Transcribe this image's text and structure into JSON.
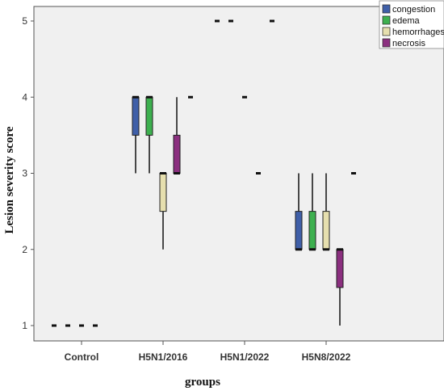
{
  "chart_data": {
    "type": "boxplot",
    "xlabel": "groups",
    "ylabel": "Lesion severity score",
    "ylim": [
      1,
      5
    ],
    "yticks": [
      "1",
      "2",
      "3",
      "4",
      "5"
    ],
    "categories": [
      "Control",
      "H5N1/2016",
      "H5N1/2022",
      "H5N8/2022"
    ],
    "legend_position": "top-right",
    "series": [
      {
        "name": "congestion",
        "color": "#3f5fa8",
        "boxes": [
          {
            "min": 1,
            "q1": 1,
            "median": 1,
            "q3": 1,
            "max": 1,
            "outliers": []
          },
          {
            "min": 3,
            "q1": 3.5,
            "median": 4,
            "q3": 4,
            "max": 4,
            "outliers": []
          },
          {
            "min": 5,
            "q1": 5,
            "median": 5,
            "q3": 5,
            "max": 5,
            "outliers": []
          },
          {
            "min": 2,
            "q1": 2,
            "median": 2,
            "q3": 2.5,
            "max": 3,
            "outliers": []
          }
        ]
      },
      {
        "name": "edema",
        "color": "#3db04f",
        "boxes": [
          {
            "min": 1,
            "q1": 1,
            "median": 1,
            "q3": 1,
            "max": 1,
            "outliers": []
          },
          {
            "min": 3,
            "q1": 3.5,
            "median": 4,
            "q3": 4,
            "max": 4,
            "outliers": []
          },
          {
            "min": 5,
            "q1": 5,
            "median": 5,
            "q3": 5,
            "max": 5,
            "outliers": []
          },
          {
            "min": 2,
            "q1": 2,
            "median": 2,
            "q3": 2.5,
            "max": 3,
            "outliers": []
          }
        ]
      },
      {
        "name": "hemorrhages",
        "color": "#e6dfae",
        "boxes": [
          {
            "min": 1,
            "q1": 1,
            "median": 1,
            "q3": 1,
            "max": 1,
            "outliers": []
          },
          {
            "min": 2,
            "q1": 2.5,
            "median": 3,
            "q3": 3,
            "max": 3,
            "outliers": []
          },
          {
            "min": 4,
            "q1": 4,
            "median": 4,
            "q3": 4,
            "max": 4,
            "outliers": []
          },
          {
            "min": 2,
            "q1": 2,
            "median": 2,
            "q3": 2.5,
            "max": 3,
            "outliers": []
          }
        ]
      },
      {
        "name": "necrosis",
        "color": "#8b2f7f",
        "boxes": [
          {
            "min": 1,
            "q1": 1,
            "median": 1,
            "q3": 1,
            "max": 1,
            "outliers": []
          },
          {
            "min": 3,
            "q1": 3,
            "median": 3,
            "q3": 3.5,
            "max": 4,
            "outliers": [
              4
            ]
          },
          {
            "min": 3,
            "q1": 3,
            "median": 3,
            "q3": 3,
            "max": 3,
            "outliers": [
              5
            ]
          },
          {
            "min": 1,
            "q1": 1.5,
            "median": 2,
            "q3": 2,
            "max": 2,
            "outliers": [
              3
            ]
          }
        ]
      }
    ]
  }
}
